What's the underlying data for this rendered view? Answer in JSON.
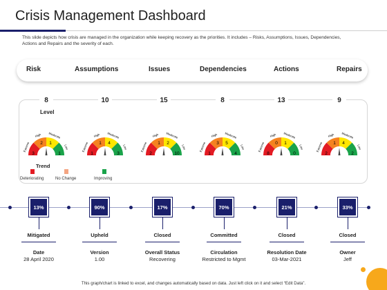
{
  "title": "Crisis Management Dashboard",
  "description": "This slide depicts how crisis are managed in the organization while keeping recovery as the priorities. It includes – Risks, Assumptions, Issues, Dependencies, Actions and Repairs and the severity of each.",
  "header_tabs": [
    "Risk",
    "Assumptions",
    "Issues",
    "Dependencies",
    "Actions",
    "Repairs"
  ],
  "level_label": "Level",
  "levels": [
    "8",
    "10",
    "15",
    "8",
    "13",
    "9"
  ],
  "gauge_labels": {
    "extreme": "Extreme",
    "high": "High",
    "moderate": "Moderate",
    "low": "Low"
  },
  "gauges": [
    {
      "values": [
        "3",
        "2",
        "1",
        "1"
      ]
    },
    {
      "values": [
        "1",
        "1",
        "4",
        "3"
      ]
    },
    {
      "values": [
        "2",
        "1",
        "2",
        "10"
      ]
    },
    {
      "values": [
        "1",
        "3",
        "5",
        "4"
      ]
    },
    {
      "values": [
        "8",
        "0",
        "1",
        "0"
      ]
    },
    {
      "values": [
        "2",
        "1",
        "4",
        "2"
      ]
    }
  ],
  "trend": {
    "label": "Trend",
    "items": [
      {
        "label": "Deteriorating",
        "color": "#e31b23"
      },
      {
        "label": "No Change",
        "color": "#f4a582"
      },
      {
        "label": "Improving",
        "color": "#1aa34a"
      }
    ]
  },
  "colors": {
    "extreme": "#e31b23",
    "high": "#f58220",
    "moderate": "#ffe600",
    "low": "#1aa34a",
    "navy": "#1a1f6b",
    "accent": "#f7a81b"
  },
  "milestones": [
    {
      "percent": "13%",
      "status": "Mitigated",
      "field_label": "Date",
      "field_value": "28 April 2020"
    },
    {
      "percent": "90%",
      "status": "Upheld",
      "field_label": "Version",
      "field_value": "1.00"
    },
    {
      "percent": "17%",
      "status": "Closed",
      "field_label": "Overall Status",
      "field_value": "Recovering"
    },
    {
      "percent": "70%",
      "status": "Committed",
      "field_label": "Circulation",
      "field_value": "Restricted to Mgmt"
    },
    {
      "percent": "21%",
      "status": "Closed",
      "field_label": "Resolution Date",
      "field_value": "03-Mar-2021"
    },
    {
      "percent": "33%",
      "status": "Closed",
      "field_label": "Owner",
      "field_value": "Jeff"
    }
  ],
  "footer": "This graph/chart is linked to excel, and changes automatically based on data. Just left click on it and select “Edit Data”."
}
